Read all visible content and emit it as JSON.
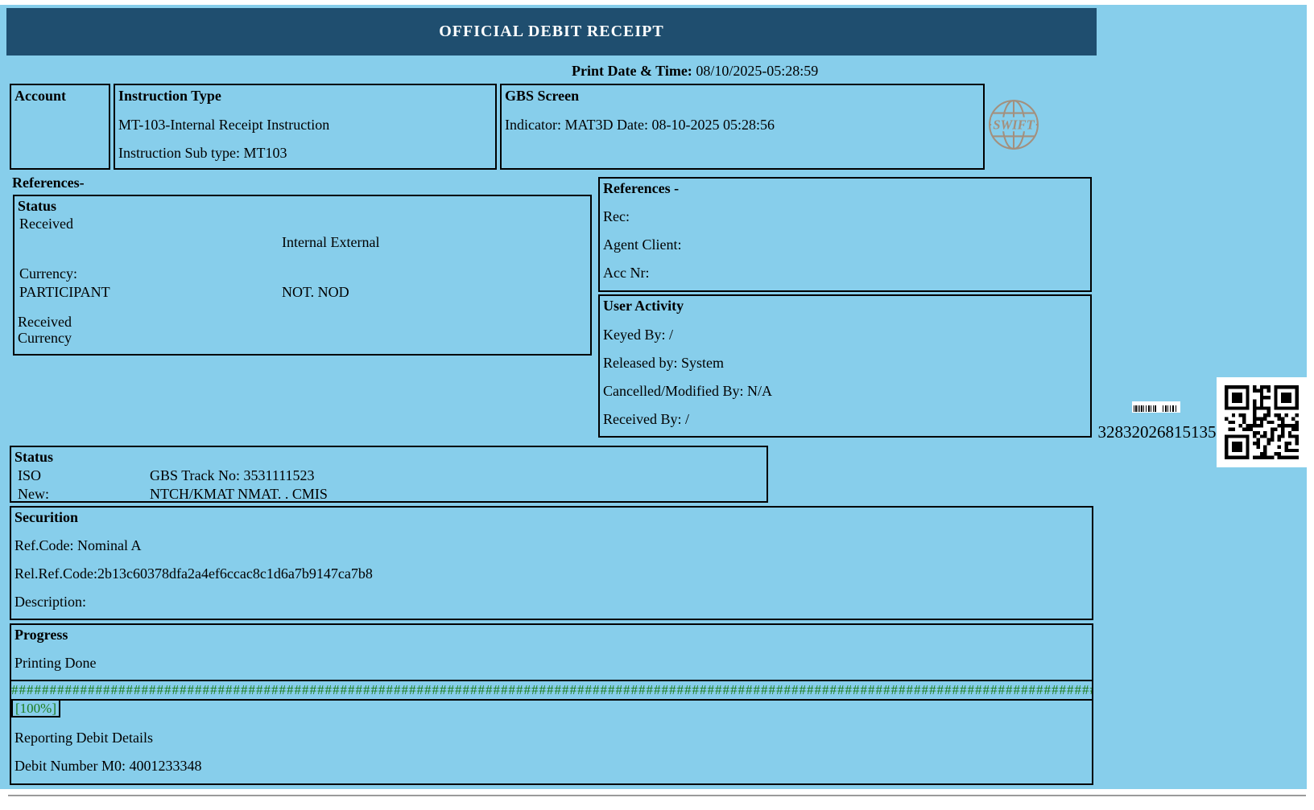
{
  "header": {
    "title": "OFFICIAL DEBIT RECEIPT"
  },
  "print": {
    "label": "Print Date & Time:",
    "value": " 08/10/2025-05:28:59"
  },
  "account": {
    "title": "Account"
  },
  "instruction": {
    "title": "Instruction Type",
    "line1": "MT-103-Internal Receipt Instruction",
    "line2": "Instruction Sub type: MT103"
  },
  "gbs": {
    "title": "GBS Screen",
    "line1": "Indicator: MAT3D Date: 08-10-2025 05:28:56"
  },
  "references_label": "References-",
  "status_left": {
    "title": "Status",
    "received": "Received",
    "internal_external": "Internal External",
    "currency_label": "Currency:",
    "participant": "PARTICIPANT",
    "not_nod": "NOT. NOD",
    "received2": "Received",
    "currency2": "Currency"
  },
  "references_right": {
    "title": "References -",
    "rec": "Rec:",
    "agent_client": "Agent Client:",
    "acc_nr": "Acc Nr:"
  },
  "user_activity": {
    "title": "User Activity",
    "keyed_by": "Keyed By: /",
    "released_by": "Released by: System",
    "cancelled": "Cancelled/Modified By: N/A",
    "received_by": "Received By: /"
  },
  "barcode": {
    "number": "32832026815135"
  },
  "status_bottom": {
    "title": "Status",
    "rows": [
      {
        "label": "ISO",
        "value": "GBS Track No: 3531111523"
      },
      {
        "label": "New:",
        "value": "NTCH/KMAT NMAT. . CMIS"
      }
    ]
  },
  "securition": {
    "title": "Securition",
    "ref_code": "Ref.Code: Nominal A",
    "rel_ref_code": "Rel.Ref.Code:2b13c60378dfa2a4ef6ccac8c1d6a7b9147ca7b8",
    "description": "Description:"
  },
  "progress": {
    "title": "Progress",
    "status": "Printing Done",
    "bar": "########################################################################################################################################################################",
    "percent": "[100%]",
    "line1": "Reporting Debit Details",
    "line2": "Debit Number M0: 4001233348"
  },
  "colors": {
    "panel_blue": "#87CEEB",
    "header_navy": "#1F4E6F",
    "progress_green": "#1E7D1E",
    "swift_tan": "#A3907E"
  }
}
